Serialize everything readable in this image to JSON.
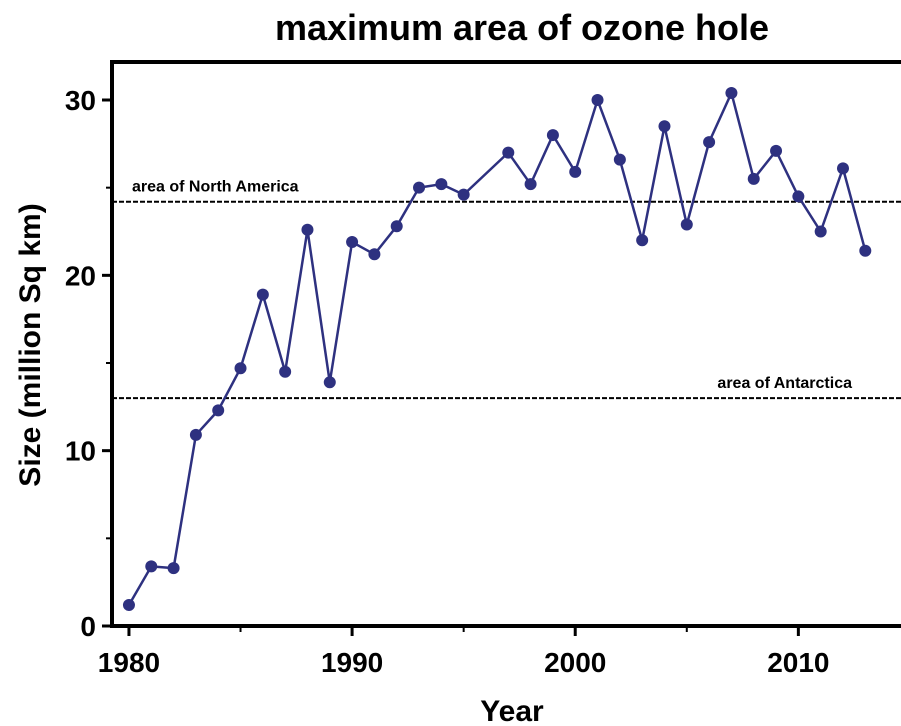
{
  "chart_data": {
    "type": "line",
    "title": "maximum area of ozone hole",
    "xlabel": "Year",
    "ylabel": "Size (million Sq km)",
    "x": [
      1980,
      1981,
      1982,
      1983,
      1984,
      1985,
      1986,
      1987,
      1988,
      1989,
      1990,
      1991,
      1992,
      1993,
      1994,
      1995,
      1997,
      1998,
      1999,
      2000,
      2001,
      2002,
      2003,
      2004,
      2005,
      2006,
      2007,
      2008,
      2009,
      2010,
      2011,
      2012,
      2013
    ],
    "series": [
      {
        "name": "ozone hole",
        "color": "#2e3180",
        "values": [
          1.2,
          3.4,
          3.3,
          10.9,
          12.3,
          14.7,
          18.9,
          14.5,
          22.6,
          13.9,
          21.9,
          21.2,
          22.8,
          25.0,
          25.2,
          24.6,
          27.0,
          25.2,
          28.0,
          25.9,
          30.0,
          26.6,
          22.0,
          28.5,
          22.9,
          27.6,
          30.4,
          25.5,
          27.1,
          24.5,
          22.5,
          26.1,
          21.4
        ]
      }
    ],
    "reference_lines": [
      {
        "label": "area of North America",
        "value": 24.2
      },
      {
        "label": "area of Antarctica",
        "value": 13.0
      }
    ],
    "xlim": [
      1979.24,
      2014.6
    ],
    "ylim": [
      0,
      30.0
    ],
    "xticks": [
      1980,
      1990,
      2000,
      2010
    ],
    "xminor_ticks": [
      1985,
      1995,
      2005
    ],
    "yticks": [
      0,
      10,
      20,
      30
    ],
    "yminor_ticks": [
      5,
      15,
      25
    ],
    "grid": false
  }
}
